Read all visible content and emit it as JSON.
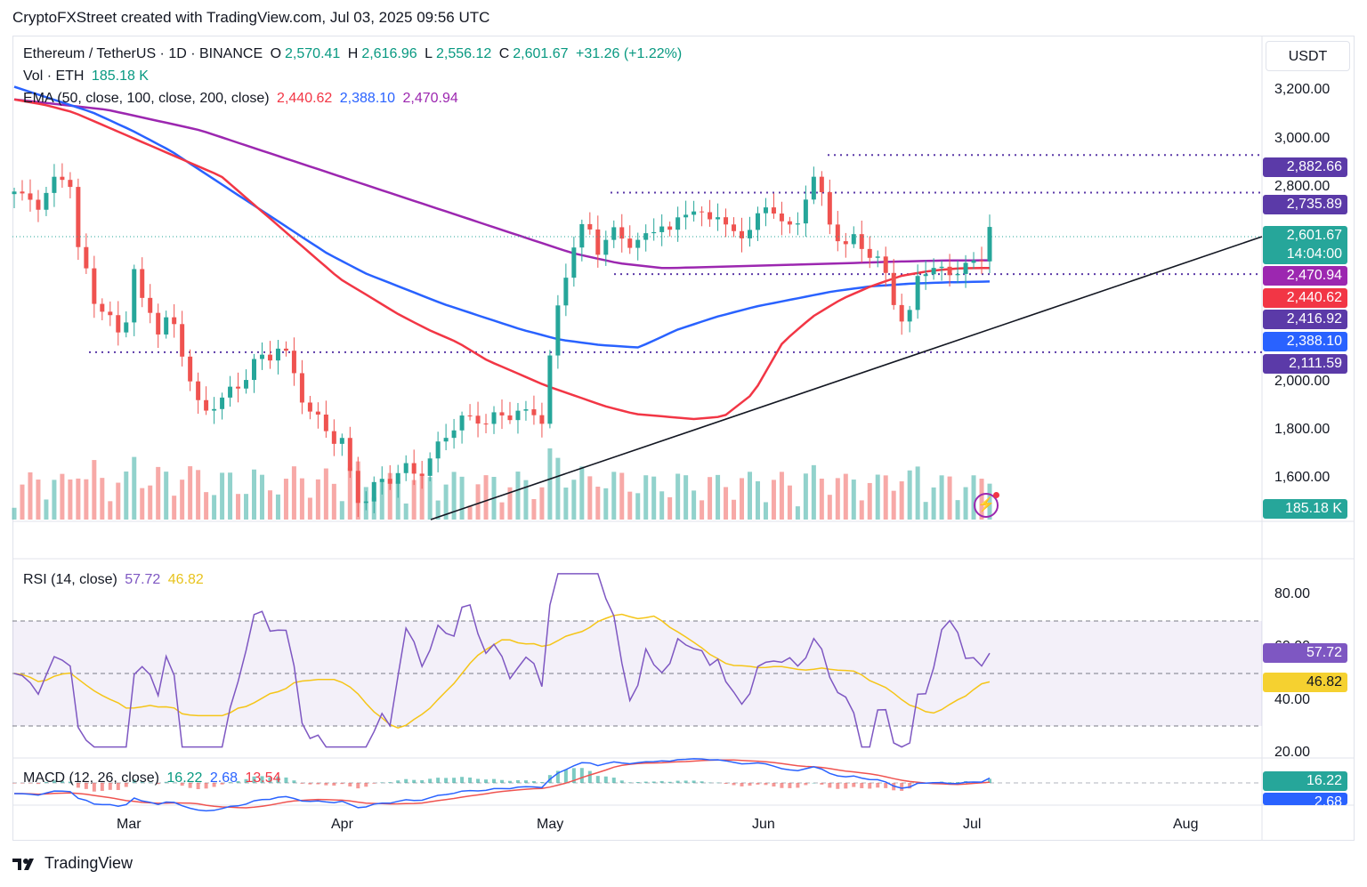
{
  "header": {
    "title": "CryptoFXStreet created with TradingView.com, Jul 03, 2025 09:56 UTC"
  },
  "legend": {
    "symbol": "Ethereum / TetherUS · 1D · BINANCE",
    "o_label": "O",
    "o_value": "2,570.41",
    "h_label": "H",
    "h_value": "2,616.96",
    "l_label": "L",
    "l_value": "2,556.12",
    "c_label": "C",
    "c_value": "2,601.67",
    "change": "+31.26 (+1.22%)",
    "vol_label": "Vol · ETH",
    "vol_value": "185.18 K",
    "ema_label": "EMA (50, close, 100, close, 200, close)",
    "ema50": "2,440.62",
    "ema100": "2,388.10",
    "ema200": "2,470.94",
    "rsi_label": "RSI (14, close)",
    "rsi_value": "57.72",
    "rsi_ma": "46.82",
    "macd_label": "MACD (12, 26, close)",
    "macd_value": "16.22",
    "macd_signal": "2.68",
    "macd_hist": "13.54"
  },
  "currency": "USDT",
  "price_axis": [
    "3,200.00",
    "3,000.00",
    "2,800.00",
    "2,000.00",
    "1,800.00",
    "1,600.00"
  ],
  "price_labels": [
    {
      "text": "2,882.66",
      "color": "#5b3aa8"
    },
    {
      "text": "2,735.89",
      "color": "#5b3aa8"
    },
    {
      "text": "2,601.67",
      "color": "#26a69a"
    },
    {
      "text": "14:04:00",
      "color": "#26a69a"
    },
    {
      "text": "2,470.94",
      "color": "#9c27b0"
    },
    {
      "text": "2,440.62",
      "color": "#f23645"
    },
    {
      "text": "2,416.92",
      "color": "#5b3aa8"
    },
    {
      "text": "2,388.10",
      "color": "#2962ff"
    },
    {
      "text": "2,111.59",
      "color": "#5b3aa8"
    },
    {
      "text": "185.18 K",
      "color": "#26a69a"
    }
  ],
  "rsi_axis": [
    "80.00",
    "60.00",
    "40.00",
    "20.00"
  ],
  "rsi_labels": [
    {
      "text": "57.72",
      "color": "#7e57c2"
    },
    {
      "text": "46.82",
      "color": "#f5d130"
    }
  ],
  "macd_labels": [
    {
      "text": "16.22",
      "color": "#26a69a"
    },
    {
      "text": "2.68",
      "color": "#2962ff"
    }
  ],
  "x_axis": [
    "Mar",
    "Apr",
    "May",
    "Jun",
    "Jul",
    "Aug"
  ],
  "footer": {
    "brand": "TradingView"
  },
  "colors": {
    "up": "#26a69a",
    "down": "#ef5350",
    "ema50": "#f23645",
    "ema100": "#2962ff",
    "ema200": "#9c27b0",
    "level": "#5b3aa8",
    "rsi": "#7e57c2",
    "rsi_ma": "#f5c518"
  },
  "chart_data": {
    "type": "candlestick",
    "title": "Ethereum / TetherUS · 1D · BINANCE",
    "price_range": [
      1450,
      3350
    ],
    "levels": [
      2882.66,
      2735.89,
      2416.92,
      2111.59
    ],
    "last_price": 2601.67,
    "close_path": [
      2740,
      2700,
      2720,
      2680,
      2760,
      2800,
      2820,
      2500,
      2420,
      2300,
      2260,
      2200,
      2180,
      2450,
      2300,
      2280,
      2180,
      2250,
      2170,
      2050,
      1900,
      1880,
      1920,
      1930,
      1960,
      2000,
      2060,
      2080,
      2100,
      2140,
      2080,
      2000,
      1900,
      1850,
      1820,
      1780,
      1760,
      1600,
      1520,
      1560,
      1600,
      1620,
      1640,
      1650,
      1640,
      1660,
      1700,
      1780,
      1820,
      1840,
      1850,
      1860,
      1830,
      1860,
      1870,
      1880,
      1860,
      1880,
      1850,
      2150,
      2350,
      2500,
      2580,
      2600,
      2520,
      2550,
      2580,
      2560,
      2530,
      2540,
      2600,
      2620,
      2560,
      2650,
      2690,
      2640,
      2620,
      2680,
      2600,
      2560,
      2580,
      2620,
      2640,
      2700,
      2640,
      2580,
      2620,
      2760,
      2800,
      2650,
      2600,
      2500,
      2560,
      2540,
      2480,
      2450,
      2400,
      2240,
      2200,
      2420,
      2440,
      2420,
      2430,
      2440,
      2420,
      2460,
      2480,
      2600
    ],
    "ema50": [
      3100,
      3080,
      3050,
      3000,
      2950,
      2900,
      2850,
      2800,
      2700,
      2600,
      2500,
      2400,
      2330,
      2260,
      2200,
      2150,
      2080,
      2030,
      1980,
      1940,
      1900,
      1870,
      1860,
      1850,
      1860,
      1950,
      2150,
      2250,
      2320,
      2370,
      2410,
      2430,
      2440,
      2441
    ],
    "ema100": [
      3150,
      3100,
      3050,
      2980,
      2900,
      2800,
      2700,
      2600,
      2500,
      2420,
      2360,
      2300,
      2250,
      2200,
      2160,
      2140,
      2130,
      2200,
      2250,
      2290,
      2320,
      2350,
      2370,
      2380,
      2385,
      2388
    ],
    "ema200": [
      3100,
      3080,
      3060,
      3020,
      2980,
      2920,
      2860,
      2800,
      2740,
      2680,
      2620,
      2560,
      2500,
      2460,
      2440,
      2445,
      2450,
      2455,
      2460,
      2466,
      2470,
      2471
    ],
    "volume_last": "185.18 K",
    "rsi": {
      "value": 57.72,
      "ma": 46.82,
      "overbought": 70,
      "oversold": 30
    },
    "macd": {
      "macd": 16.22,
      "signal": 2.68,
      "histogram": 13.54
    },
    "x_labels": [
      "Mar",
      "Apr",
      "May",
      "Jun",
      "Jul",
      "Aug"
    ]
  }
}
